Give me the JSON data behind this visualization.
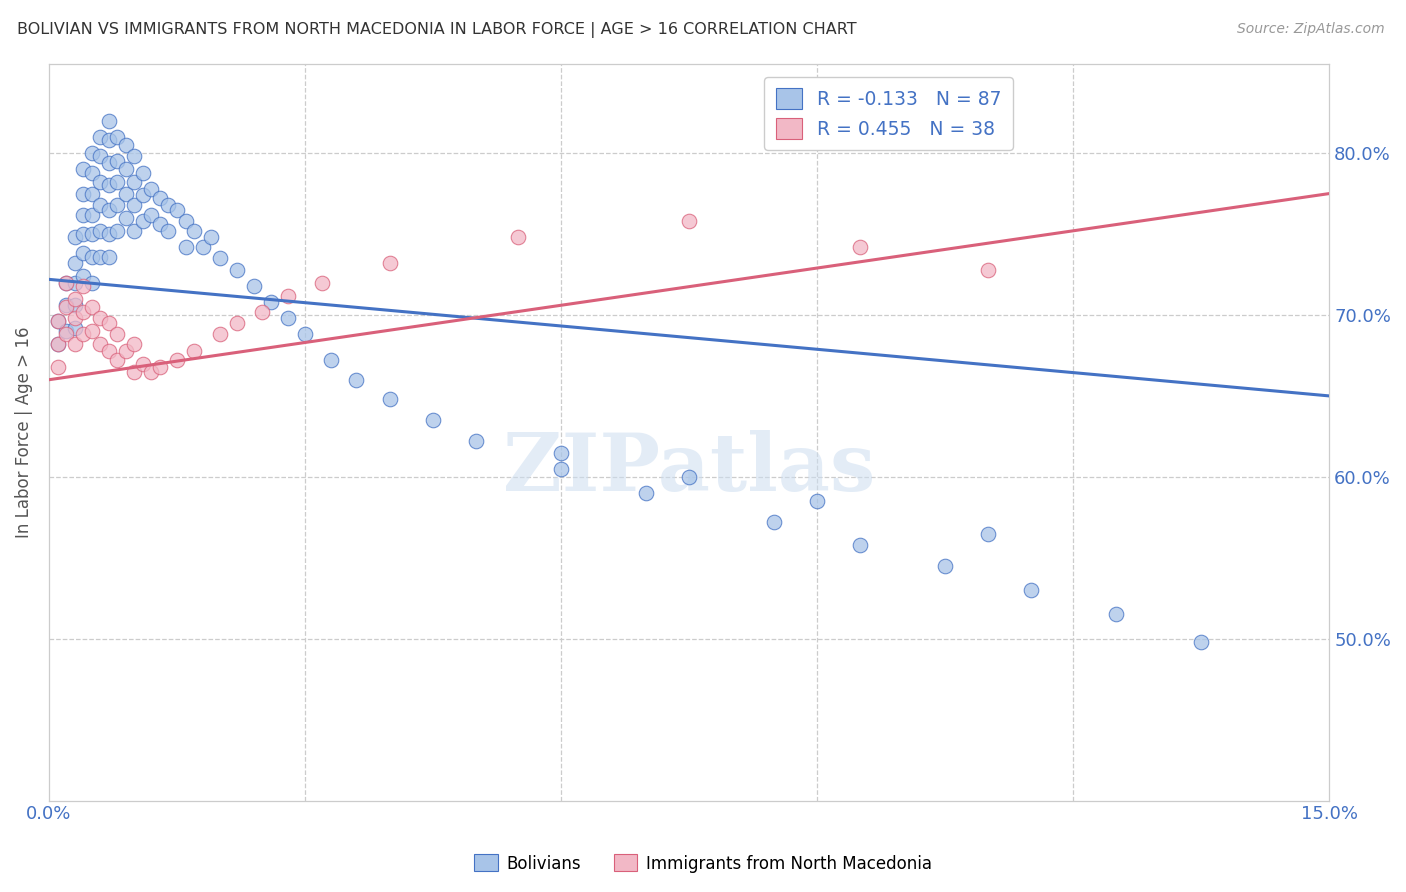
{
  "title": "BOLIVIAN VS IMMIGRANTS FROM NORTH MACEDONIA IN LABOR FORCE | AGE > 16 CORRELATION CHART",
  "source": "Source: ZipAtlas.com",
  "ylabel": "In Labor Force | Age > 16",
  "xmin": 0.0,
  "xmax": 0.15,
  "ymin": 0.4,
  "ymax": 0.855,
  "ytick_vals": [
    0.5,
    0.6,
    0.7,
    0.8
  ],
  "ytick_labels": [
    "50.0%",
    "60.0%",
    "70.0%",
    "80.0%"
  ],
  "blue_R": -0.133,
  "blue_N": 87,
  "pink_R": 0.455,
  "pink_N": 38,
  "blue_color": "#a8c4e8",
  "pink_color": "#f2b8c6",
  "blue_line_color": "#4472c4",
  "pink_line_color": "#d9607a",
  "legend_label_blue": "Bolivians",
  "legend_label_pink": "Immigrants from North Macedonia",
  "watermark": "ZIPatlas",
  "blue_line_y0": 0.722,
  "blue_line_y1": 0.65,
  "pink_line_y0": 0.66,
  "pink_line_y1": 0.775,
  "blue_scatter_x": [
    0.001,
    0.001,
    0.002,
    0.002,
    0.002,
    0.003,
    0.003,
    0.003,
    0.003,
    0.003,
    0.004,
    0.004,
    0.004,
    0.004,
    0.004,
    0.004,
    0.005,
    0.005,
    0.005,
    0.005,
    0.005,
    0.005,
    0.005,
    0.006,
    0.006,
    0.006,
    0.006,
    0.006,
    0.006,
    0.007,
    0.007,
    0.007,
    0.007,
    0.007,
    0.007,
    0.007,
    0.008,
    0.008,
    0.008,
    0.008,
    0.008,
    0.009,
    0.009,
    0.009,
    0.009,
    0.01,
    0.01,
    0.01,
    0.01,
    0.011,
    0.011,
    0.011,
    0.012,
    0.012,
    0.013,
    0.013,
    0.014,
    0.014,
    0.015,
    0.016,
    0.016,
    0.017,
    0.018,
    0.019,
    0.02,
    0.022,
    0.024,
    0.026,
    0.028,
    0.03,
    0.033,
    0.036,
    0.04,
    0.045,
    0.05,
    0.06,
    0.07,
    0.085,
    0.095,
    0.105,
    0.115,
    0.125,
    0.135,
    0.06,
    0.075,
    0.09,
    0.11
  ],
  "blue_scatter_y": [
    0.696,
    0.682,
    0.72,
    0.706,
    0.69,
    0.748,
    0.732,
    0.72,
    0.706,
    0.692,
    0.79,
    0.775,
    0.762,
    0.75,
    0.738,
    0.724,
    0.8,
    0.788,
    0.775,
    0.762,
    0.75,
    0.736,
    0.72,
    0.81,
    0.798,
    0.782,
    0.768,
    0.752,
    0.736,
    0.82,
    0.808,
    0.794,
    0.78,
    0.765,
    0.75,
    0.736,
    0.81,
    0.795,
    0.782,
    0.768,
    0.752,
    0.805,
    0.79,
    0.775,
    0.76,
    0.798,
    0.782,
    0.768,
    0.752,
    0.788,
    0.774,
    0.758,
    0.778,
    0.762,
    0.772,
    0.756,
    0.768,
    0.752,
    0.765,
    0.758,
    0.742,
    0.752,
    0.742,
    0.748,
    0.735,
    0.728,
    0.718,
    0.708,
    0.698,
    0.688,
    0.672,
    0.66,
    0.648,
    0.635,
    0.622,
    0.605,
    0.59,
    0.572,
    0.558,
    0.545,
    0.53,
    0.515,
    0.498,
    0.615,
    0.6,
    0.585,
    0.565
  ],
  "pink_scatter_x": [
    0.001,
    0.001,
    0.001,
    0.002,
    0.002,
    0.002,
    0.003,
    0.003,
    0.003,
    0.004,
    0.004,
    0.004,
    0.005,
    0.005,
    0.006,
    0.006,
    0.007,
    0.007,
    0.008,
    0.008,
    0.009,
    0.01,
    0.01,
    0.011,
    0.012,
    0.013,
    0.015,
    0.017,
    0.02,
    0.022,
    0.025,
    0.028,
    0.032,
    0.04,
    0.055,
    0.075,
    0.095,
    0.11
  ],
  "pink_scatter_y": [
    0.696,
    0.682,
    0.668,
    0.72,
    0.705,
    0.688,
    0.71,
    0.698,
    0.682,
    0.718,
    0.702,
    0.688,
    0.705,
    0.69,
    0.698,
    0.682,
    0.695,
    0.678,
    0.688,
    0.672,
    0.678,
    0.682,
    0.665,
    0.67,
    0.665,
    0.668,
    0.672,
    0.678,
    0.688,
    0.695,
    0.702,
    0.712,
    0.72,
    0.732,
    0.748,
    0.758,
    0.742,
    0.728
  ]
}
